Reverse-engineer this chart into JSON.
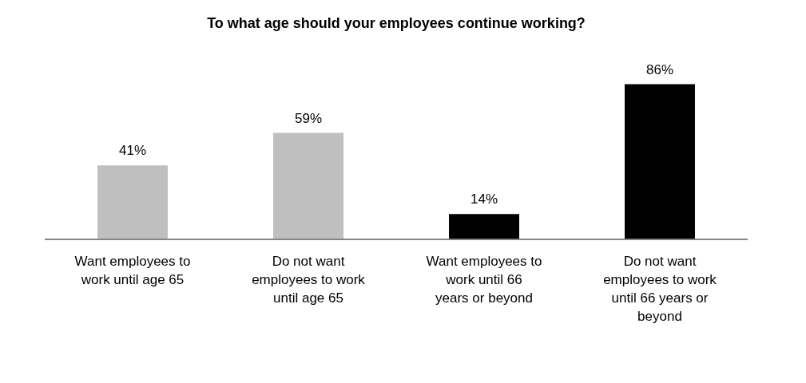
{
  "chart_data": {
    "type": "bar",
    "title": "To what age should your employees continue working?",
    "categories": [
      "Want employees to work until age 65",
      "Do not want employees to work until age 65",
      "Want employees to work until 66 years or beyond",
      "Do not want employees to work until 66 years or beyond"
    ],
    "values": [
      41,
      59,
      14,
      86
    ],
    "colors": [
      "#bfbfbf",
      "#bfbfbf",
      "#000000",
      "#000000"
    ],
    "value_labels": [
      "41%",
      "59%",
      "14%",
      "86%"
    ]
  }
}
